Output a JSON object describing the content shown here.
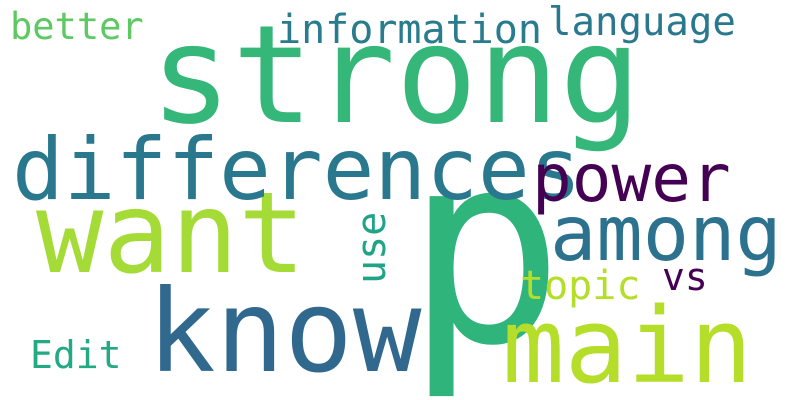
{
  "words": {
    "strong": "strong",
    "p": "p",
    "want": "want",
    "know": "know",
    "main": "main",
    "differences": "differences",
    "among": "among",
    "power": "power",
    "information": "information",
    "language": "language",
    "better": "better",
    "topic": "topic",
    "vs": "vs",
    "use": "use",
    "edit": "Edit"
  },
  "colors": {
    "strong": "#35b779",
    "p": "#2fb47c",
    "want": "#a5db36",
    "know": "#31688e",
    "main": "#b5de2b",
    "differences": "#2a788e",
    "among": "#2c728e",
    "power": "#440154",
    "information": "#287c8e",
    "language": "#2a788e",
    "better": "#5ec962",
    "topic": "#b5de2b",
    "vs": "#440154",
    "use": "#20a386",
    "edit": "#23a983"
  }
}
